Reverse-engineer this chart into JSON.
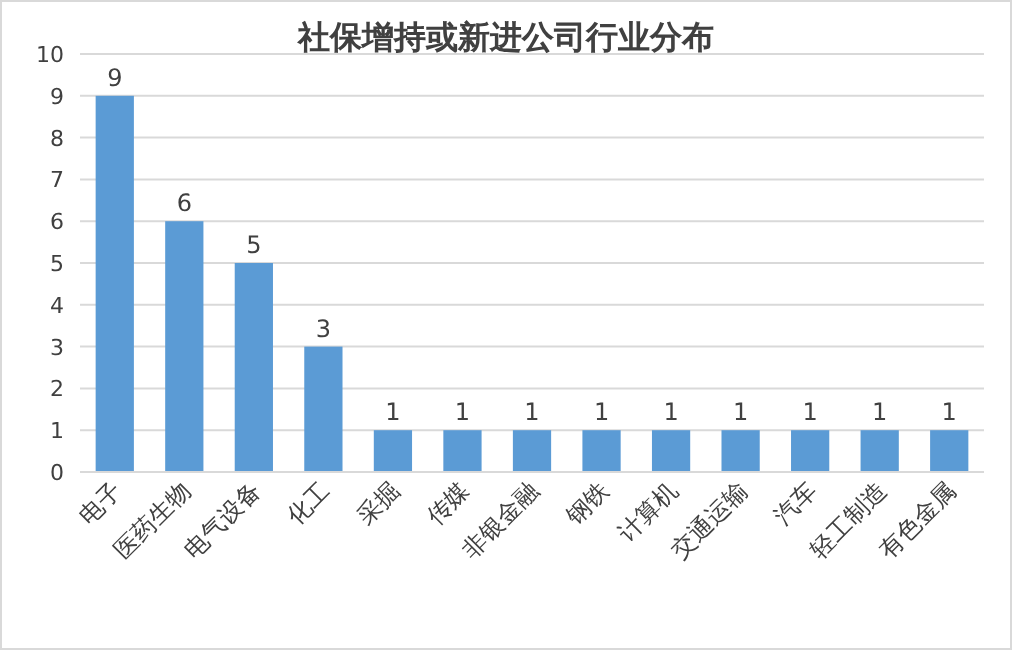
{
  "chart_data": {
    "type": "bar",
    "title": "社保增持或新进公司行业分布",
    "categories": [
      "电子",
      "医药生物",
      "电气设备",
      "化工",
      "采掘",
      "传媒",
      "非银金融",
      "钢铁",
      "计算机",
      "交通运输",
      "汽车",
      "轻工制造",
      "有色金属"
    ],
    "values": [
      9,
      6,
      5,
      3,
      1,
      1,
      1,
      1,
      1,
      1,
      1,
      1,
      1
    ],
    "color": "#5b9bd5",
    "ylim": [
      0,
      10
    ],
    "yticks": [
      0,
      1,
      2,
      3,
      4,
      5,
      6,
      7,
      8,
      9,
      10
    ],
    "grid": "y",
    "data_labels": true
  }
}
